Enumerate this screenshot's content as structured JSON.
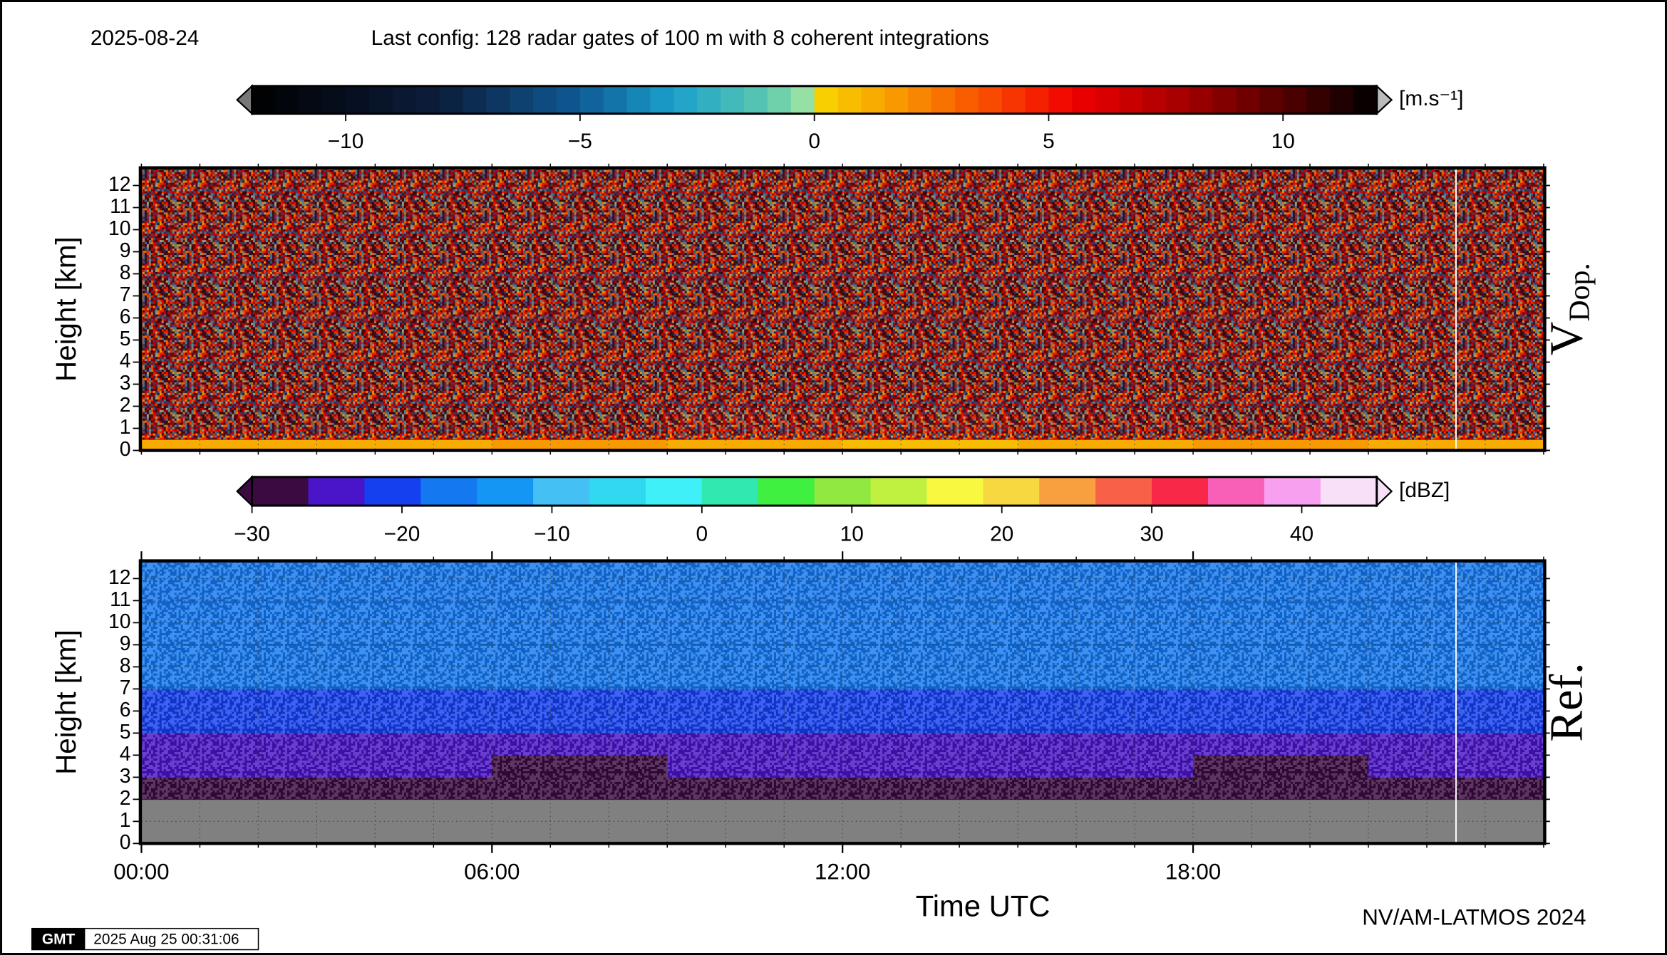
{
  "header": {
    "date": "2025-08-24",
    "title": "Last config: 128 radar gates of 100 m with 8 coherent integrations"
  },
  "chart_data": [
    {
      "type": "heatmap",
      "label": "V",
      "label_sub": "Dop.",
      "ylabel": "Height [km]",
      "xlim": [
        0,
        24
      ],
      "ylim": [
        0,
        12.8
      ],
      "yticks": [
        0,
        1,
        2,
        3,
        4,
        5,
        6,
        7,
        8,
        9,
        10,
        11,
        12
      ],
      "xgrid": [
        0,
        1,
        2,
        3,
        4,
        5,
        6,
        7,
        8,
        9,
        10,
        11,
        12,
        13,
        14,
        15,
        16,
        17,
        18,
        19,
        20,
        21,
        22,
        23,
        24
      ],
      "grid": true,
      "missing_x": [
        22.5
      ],
      "noise": true,
      "x_bins": [
        0,
        3,
        6,
        9,
        12,
        15,
        18,
        21,
        24
      ],
      "y_bins": [
        0,
        0.5,
        1,
        2,
        3,
        4,
        5,
        6,
        7,
        8,
        9,
        10,
        11,
        12,
        12.8
      ],
      "values": [
        [
          1,
          1,
          1.5,
          1,
          0.5,
          1,
          1.5,
          1
        ],
        [
          6,
          6,
          6,
          5,
          5,
          6,
          6,
          6
        ],
        [
          7,
          7,
          7,
          5,
          5,
          6,
          7,
          7
        ],
        [
          7,
          7,
          7,
          7,
          7,
          7,
          7,
          7
        ],
        [
          7,
          7,
          7,
          7,
          7,
          7,
          7,
          7
        ],
        [
          7,
          7,
          7,
          7,
          7,
          7,
          7,
          7
        ],
        [
          7,
          7,
          7,
          7,
          7,
          7,
          7,
          7
        ],
        [
          7,
          7,
          7,
          7,
          7,
          7,
          7,
          7
        ],
        [
          7,
          7,
          7,
          7,
          7,
          7,
          7,
          7
        ],
        [
          7,
          7,
          7,
          7,
          7,
          7,
          7,
          7
        ],
        [
          7,
          7,
          7,
          7,
          7,
          7,
          7,
          7
        ],
        [
          7,
          7,
          7,
          7,
          7,
          7,
          7,
          7
        ],
        [
          7,
          7,
          7,
          7,
          7,
          7,
          7,
          7
        ],
        [
          7,
          7,
          7,
          7,
          7,
          7,
          7,
          7
        ]
      ],
      "colorbar": {
        "unit": "[m.s⁻¹]",
        "lim": [
          -12,
          12
        ],
        "step": 0.5,
        "ticks": [
          {
            "value": -10,
            "label": "−10"
          },
          {
            "value": -5,
            "label": "−5"
          },
          0,
          5,
          10
        ],
        "colormap": [
          [
            -12,
            "#000000"
          ],
          [
            -8,
            "#0c1d3c"
          ],
          [
            -5,
            "#0f5a94"
          ],
          [
            -3,
            "#1aa0cc"
          ],
          [
            -1,
            "#5cc8b0"
          ],
          [
            0,
            "#a8e8a0"
          ],
          [
            0,
            "#f8d800"
          ],
          [
            2,
            "#f89000"
          ],
          [
            4,
            "#f84000"
          ],
          [
            5.5,
            "#f00000"
          ],
          [
            8,
            "#a00000"
          ],
          [
            10.5,
            "#400000"
          ],
          [
            12,
            "#000000"
          ]
        ]
      }
    },
    {
      "type": "heatmap",
      "label": "Ref.",
      "ylabel": "Height [km]",
      "xlabel": "Time UTC",
      "xlim": [
        0,
        24
      ],
      "ylim": [
        0,
        12.8
      ],
      "yticks": [
        0,
        1,
        2,
        3,
        4,
        5,
        6,
        7,
        8,
        9,
        10,
        11,
        12
      ],
      "xticks": [
        {
          "value": 0,
          "label": "00:00"
        },
        {
          "value": 6,
          "label": "06:00"
        },
        {
          "value": 12,
          "label": "12:00"
        },
        {
          "value": 18,
          "label": "18:00"
        }
      ],
      "xgrid": [
        0,
        1,
        2,
        3,
        4,
        5,
        6,
        7,
        8,
        9,
        10,
        11,
        12,
        13,
        14,
        15,
        16,
        17,
        18,
        19,
        20,
        21,
        22,
        23,
        24
      ],
      "grid": true,
      "missing_x": [
        22.5
      ],
      "mask_color": "#808080",
      "x_bins": [
        0,
        3,
        6,
        9,
        12,
        15,
        18,
        21,
        24
      ],
      "y_bins": [
        0,
        0.5,
        1,
        2,
        3,
        4,
        5,
        6,
        7,
        8,
        9,
        10,
        11,
        12,
        12.8
      ],
      "values": [
        [
          null,
          null,
          null,
          null,
          null,
          null,
          null,
          null
        ],
        [
          null,
          null,
          null,
          null,
          null,
          null,
          null,
          null
        ],
        [
          null,
          null,
          null,
          null,
          null,
          null,
          null,
          null
        ],
        [
          -28,
          -28,
          -28,
          -27,
          -27,
          -28,
          -28,
          -28
        ],
        [
          -26,
          -26,
          -27,
          -26,
          -25,
          -26,
          -27,
          -26
        ],
        [
          -23,
          -23,
          -24,
          -24,
          -23,
          -23,
          -24,
          -23
        ],
        [
          -21,
          -21,
          -22,
          -22,
          -21,
          -21,
          -22,
          -21
        ],
        [
          -19,
          -19,
          -20,
          -20,
          -19,
          -19,
          -20,
          -19
        ],
        [
          -18,
          -18,
          -18,
          -18,
          -18,
          -18,
          -18,
          -18
        ],
        [
          -17,
          -17,
          -17,
          -17,
          -17,
          -17,
          -17,
          -17
        ],
        [
          -16,
          -16,
          -16,
          -16,
          -16,
          -16,
          -16,
          -16
        ],
        [
          -16,
          -16,
          -16,
          -16,
          -16,
          -16,
          -16,
          -16
        ],
        [
          -16,
          -16,
          -16,
          -16,
          -16,
          -16,
          -16,
          -16
        ],
        [
          -16,
          -16,
          -16,
          -16,
          -16,
          -16,
          -16,
          -16
        ]
      ],
      "colorbar": {
        "unit": "[dBZ]",
        "lim": [
          -30,
          45
        ],
        "ticks": [
          {
            "value": -30,
            "label": "−30"
          },
          {
            "value": -20,
            "label": "−20"
          },
          {
            "value": -10,
            "label": "−10"
          },
          0,
          10,
          20,
          30,
          40
        ],
        "colors": [
          "#3a0a40",
          "#4a14c8",
          "#1440f0",
          "#1478f0",
          "#1496f5",
          "#44c0f5",
          "#30d8f0",
          "#40f0f8",
          "#30e8b0",
          "#40f040",
          "#90e840",
          "#c0f040",
          "#f8f840",
          "#f8d840",
          "#f8a040",
          "#f86048",
          "#f82848",
          "#f860b8",
          "#f8a0f0",
          "#f8e0f8"
        ]
      }
    }
  ],
  "footer": {
    "credit": "NV/AM-LATMOS 2024",
    "logo": "GMT",
    "timestamp": "2025 Aug 25 00:31:06"
  }
}
